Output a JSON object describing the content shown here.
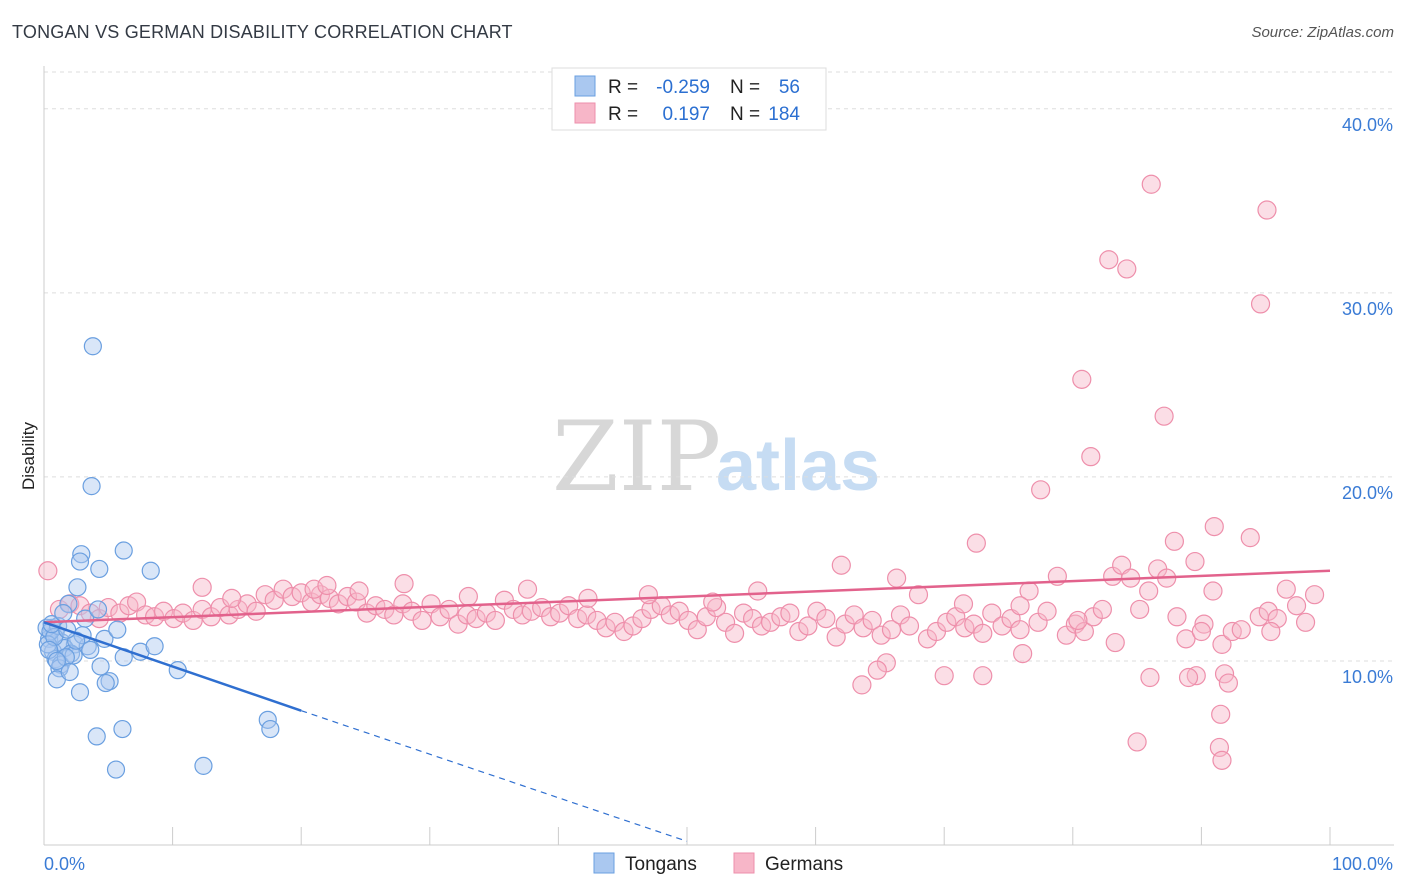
{
  "header": {
    "title": "TONGAN VS GERMAN DISABILITY CORRELATION CHART",
    "source": "Source: ZipAtlas.com"
  },
  "watermark": {
    "part1": "ZIP",
    "part2": "atlas"
  },
  "legend_top": {
    "rows": [
      {
        "r_label": "R =",
        "r_value": "-0.259",
        "n_label": "N =",
        "n_value": "56",
        "color": "#aac8f0"
      },
      {
        "r_label": "R =",
        "r_value": "0.197",
        "n_label": "N =",
        "n_value": "184",
        "color": "#f7b6c8"
      }
    ]
  },
  "legend_bottom": {
    "items": [
      "Tongans",
      "Germans"
    ]
  },
  "colors": {
    "tongans_fill": "#aac8f0",
    "tongans_stroke": "#6a9fe0",
    "tongans_line": "#2f6fd0",
    "germans_fill": "#f7b6c8",
    "germans_stroke": "#ee8fab",
    "germans_line": "#e2628c",
    "tick_text": "#3a7bd5",
    "grid": "#dddddd"
  },
  "chart_data": {
    "type": "scatter",
    "title": "TONGAN VS GERMAN DISABILITY CORRELATION CHART",
    "xlabel": "",
    "ylabel": "Disability",
    "xlim": [
      0,
      100
    ],
    "ylim": [
      0,
      42
    ],
    "x_tick_labels": [
      "0.0%",
      "100.0%"
    ],
    "y_ticks": [
      10,
      20,
      30,
      40
    ],
    "y_tick_labels": [
      "10.0%",
      "20.0%",
      "30.0%",
      "40.0%"
    ],
    "grid": "horizontal dashed",
    "legend_position": "top-center",
    "series": [
      {
        "name": "Tongans",
        "r": -0.259,
        "n": 56,
        "trend": {
          "x": [
            0,
            20
          ],
          "y": [
            12.1,
            7.3
          ],
          "extended_x": [
            20,
            50
          ],
          "extended_y": [
            7.3,
            0.2
          ]
        },
        "points": [
          [
            3.8,
            27.1
          ],
          [
            3.7,
            19.5
          ],
          [
            6.2,
            16.0
          ],
          [
            2.9,
            15.8
          ],
          [
            2.8,
            15.4
          ],
          [
            8.3,
            14.9
          ],
          [
            4.3,
            15.0
          ],
          [
            2.6,
            14.0
          ],
          [
            1.9,
            13.1
          ],
          [
            3.2,
            12.3
          ],
          [
            4.2,
            12.8
          ],
          [
            0.6,
            11.8
          ],
          [
            0.9,
            11.5
          ],
          [
            0.4,
            11.2
          ],
          [
            1.4,
            11.0
          ],
          [
            2.4,
            10.9
          ],
          [
            3.4,
            10.8
          ],
          [
            0.7,
            10.5
          ],
          [
            1.6,
            10.7
          ],
          [
            2.1,
            10.4
          ],
          [
            0.9,
            10.1
          ],
          [
            1.3,
            9.8
          ],
          [
            1.2,
            9.6
          ],
          [
            2.3,
            10.3
          ],
          [
            4.7,
            11.2
          ],
          [
            5.7,
            11.7
          ],
          [
            6.2,
            10.2
          ],
          [
            7.5,
            10.5
          ],
          [
            8.6,
            10.8
          ],
          [
            4.4,
            9.7
          ],
          [
            5.1,
            8.9
          ],
          [
            1.0,
            9.0
          ],
          [
            2.8,
            8.3
          ],
          [
            4.8,
            8.8
          ],
          [
            10.4,
            9.5
          ],
          [
            6.1,
            6.3
          ],
          [
            4.1,
            5.9
          ],
          [
            17.4,
            6.8
          ],
          [
            17.6,
            6.3
          ],
          [
            5.6,
            4.1
          ],
          [
            12.4,
            4.3
          ],
          [
            0.2,
            11.8
          ],
          [
            0.5,
            11.6
          ],
          [
            1.1,
            11.9
          ],
          [
            0.3,
            10.9
          ],
          [
            0.8,
            11.3
          ],
          [
            1.7,
            10.2
          ],
          [
            2.0,
            9.4
          ],
          [
            3.0,
            11.4
          ],
          [
            0.6,
            12.0
          ],
          [
            1.5,
            12.6
          ],
          [
            2.5,
            11.1
          ],
          [
            0.4,
            10.6
          ],
          [
            1.8,
            11.7
          ],
          [
            3.6,
            10.6
          ],
          [
            1.0,
            10.0
          ]
        ]
      },
      {
        "name": "Germans",
        "r": 0.197,
        "n": 184,
        "trend": {
          "x": [
            0,
            100
          ],
          "y": [
            12.1,
            14.9
          ]
        },
        "points": [
          [
            0.3,
            14.9
          ],
          [
            1.2,
            12.8
          ],
          [
            2.0,
            13.1
          ],
          [
            2.8,
            13.0
          ],
          [
            3.6,
            12.6
          ],
          [
            4.3,
            12.3
          ],
          [
            5.0,
            12.9
          ],
          [
            5.9,
            12.6
          ],
          [
            6.6,
            13.0
          ],
          [
            7.2,
            13.2
          ],
          [
            7.9,
            12.5
          ],
          [
            8.6,
            12.4
          ],
          [
            9.3,
            12.7
          ],
          [
            10.1,
            12.3
          ],
          [
            10.8,
            12.6
          ],
          [
            11.6,
            12.2
          ],
          [
            12.3,
            12.8
          ],
          [
            13.0,
            12.4
          ],
          [
            13.7,
            12.9
          ],
          [
            14.4,
            12.5
          ],
          [
            15.1,
            12.8
          ],
          [
            15.8,
            13.1
          ],
          [
            16.5,
            12.7
          ],
          [
            17.2,
            13.6
          ],
          [
            17.9,
            13.3
          ],
          [
            18.6,
            13.9
          ],
          [
            19.3,
            13.5
          ],
          [
            20.0,
            13.7
          ],
          [
            20.8,
            13.2
          ],
          [
            21.5,
            13.6
          ],
          [
            22.2,
            13.4
          ],
          [
            22.9,
            13.1
          ],
          [
            23.6,
            13.5
          ],
          [
            24.3,
            13.2
          ],
          [
            25.1,
            12.6
          ],
          [
            25.8,
            13.0
          ],
          [
            26.5,
            12.8
          ],
          [
            27.2,
            12.5
          ],
          [
            27.9,
            13.1
          ],
          [
            28.6,
            12.7
          ],
          [
            29.4,
            12.2
          ],
          [
            30.1,
            13.1
          ],
          [
            30.8,
            12.4
          ],
          [
            31.5,
            12.8
          ],
          [
            32.2,
            12.0
          ],
          [
            32.9,
            12.5
          ],
          [
            33.6,
            12.3
          ],
          [
            34.4,
            12.6
          ],
          [
            35.1,
            12.2
          ],
          [
            35.8,
            13.3
          ],
          [
            36.5,
            12.8
          ],
          [
            37.2,
            12.5
          ],
          [
            37.9,
            12.7
          ],
          [
            38.7,
            12.9
          ],
          [
            39.4,
            12.4
          ],
          [
            40.1,
            12.6
          ],
          [
            40.8,
            13.0
          ],
          [
            41.5,
            12.3
          ],
          [
            42.2,
            12.5
          ],
          [
            43.0,
            12.2
          ],
          [
            43.7,
            11.8
          ],
          [
            44.4,
            12.1
          ],
          [
            45.1,
            11.6
          ],
          [
            45.8,
            11.9
          ],
          [
            46.5,
            12.3
          ],
          [
            47.2,
            12.8
          ],
          [
            48.0,
            13.0
          ],
          [
            48.7,
            12.5
          ],
          [
            49.4,
            12.7
          ],
          [
            50.1,
            12.2
          ],
          [
            50.8,
            11.7
          ],
          [
            51.5,
            12.4
          ],
          [
            52.3,
            12.9
          ],
          [
            53.0,
            12.1
          ],
          [
            53.7,
            11.5
          ],
          [
            54.4,
            12.6
          ],
          [
            55.1,
            12.3
          ],
          [
            55.8,
            11.9
          ],
          [
            56.5,
            12.1
          ],
          [
            57.3,
            12.4
          ],
          [
            58.0,
            12.6
          ],
          [
            58.7,
            11.6
          ],
          [
            59.4,
            11.9
          ],
          [
            60.1,
            12.7
          ],
          [
            60.8,
            12.3
          ],
          [
            61.6,
            11.3
          ],
          [
            62.3,
            12.0
          ],
          [
            63.0,
            12.5
          ],
          [
            63.7,
            11.8
          ],
          [
            64.4,
            12.2
          ],
          [
            65.1,
            11.4
          ],
          [
            65.9,
            11.7
          ],
          [
            66.6,
            12.5
          ],
          [
            67.3,
            11.9
          ],
          [
            68.0,
            13.6
          ],
          [
            68.7,
            11.2
          ],
          [
            69.4,
            11.6
          ],
          [
            70.2,
            12.1
          ],
          [
            70.9,
            12.4
          ],
          [
            71.6,
            11.8
          ],
          [
            72.3,
            12.0
          ],
          [
            73.0,
            11.5
          ],
          [
            73.7,
            12.6
          ],
          [
            74.5,
            11.9
          ],
          [
            75.2,
            12.3
          ],
          [
            75.9,
            11.7
          ],
          [
            76.6,
            13.8
          ],
          [
            77.3,
            12.1
          ],
          [
            78.0,
            12.7
          ],
          [
            78.8,
            14.6
          ],
          [
            79.5,
            11.4
          ],
          [
            80.2,
            12.0
          ],
          [
            80.9,
            11.6
          ],
          [
            81.6,
            12.4
          ],
          [
            82.3,
            12.8
          ],
          [
            83.1,
            14.6
          ],
          [
            83.8,
            15.2
          ],
          [
            84.5,
            14.5
          ],
          [
            85.2,
            12.8
          ],
          [
            85.9,
            13.8
          ],
          [
            86.6,
            15.0
          ],
          [
            87.3,
            14.5
          ],
          [
            88.1,
            12.4
          ],
          [
            88.8,
            11.2
          ],
          [
            89.5,
            15.4
          ],
          [
            90.2,
            12.0
          ],
          [
            90.9,
            13.8
          ],
          [
            91.6,
            10.9
          ],
          [
            92.4,
            11.6
          ],
          [
            93.1,
            11.7
          ],
          [
            93.8,
            16.7
          ],
          [
            94.5,
            12.4
          ],
          [
            95.2,
            12.7
          ],
          [
            95.9,
            12.3
          ],
          [
            96.6,
            13.9
          ],
          [
            97.4,
            13.0
          ],
          [
            98.1,
            12.1
          ],
          [
            98.8,
            13.6
          ],
          [
            12.3,
            14.0
          ],
          [
            14.6,
            13.4
          ],
          [
            21.0,
            13.9
          ],
          [
            22.0,
            14.1
          ],
          [
            24.5,
            13.8
          ],
          [
            28.0,
            14.2
          ],
          [
            33.0,
            13.5
          ],
          [
            37.6,
            13.9
          ],
          [
            42.3,
            13.4
          ],
          [
            47.0,
            13.6
          ],
          [
            52.0,
            13.2
          ],
          [
            55.5,
            13.8
          ],
          [
            62.0,
            15.2
          ],
          [
            66.3,
            14.5
          ],
          [
            71.5,
            13.1
          ],
          [
            86.1,
            35.9
          ],
          [
            95.1,
            34.5
          ],
          [
            82.8,
            31.8
          ],
          [
            84.2,
            31.3
          ],
          [
            94.6,
            29.4
          ],
          [
            80.7,
            25.3
          ],
          [
            87.1,
            23.3
          ],
          [
            81.4,
            21.1
          ],
          [
            77.5,
            19.3
          ],
          [
            91.0,
            17.3
          ],
          [
            72.5,
            16.4
          ],
          [
            87.9,
            16.5
          ],
          [
            75.9,
            13.0
          ],
          [
            80.4,
            12.2
          ],
          [
            90.0,
            11.6
          ],
          [
            95.4,
            11.6
          ],
          [
            83.3,
            11.0
          ],
          [
            76.1,
            10.4
          ],
          [
            73.0,
            9.2
          ],
          [
            86.0,
            9.1
          ],
          [
            89.6,
            9.2
          ],
          [
            91.8,
            9.3
          ],
          [
            89.0,
            9.1
          ],
          [
            70.0,
            9.2
          ],
          [
            65.5,
            9.9
          ],
          [
            64.8,
            9.5
          ],
          [
            63.6,
            8.7
          ],
          [
            85.0,
            5.6
          ],
          [
            91.5,
            7.1
          ],
          [
            91.4,
            5.3
          ],
          [
            91.6,
            4.6
          ],
          [
            92.1,
            8.8
          ]
        ]
      }
    ]
  }
}
